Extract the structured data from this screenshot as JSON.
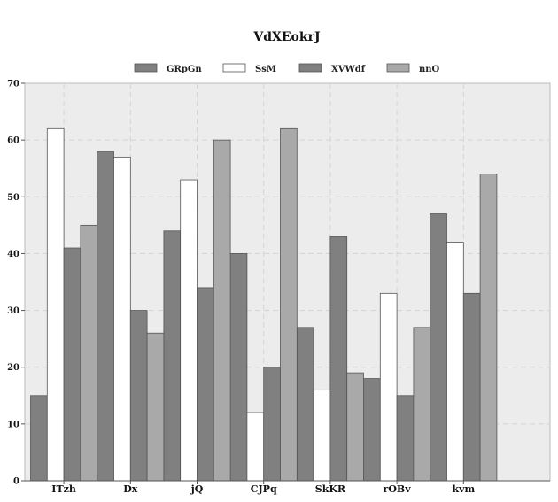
{
  "chart_data": {
    "type": "bar",
    "title": "VdXEokrJ",
    "xlabel": "",
    "ylabel": "",
    "categories": [
      "ITzh",
      "Dx",
      "jQ",
      "CJPq",
      "SkKR",
      "rOBv",
      "kvm"
    ],
    "series": [
      {
        "name": "GRpGn",
        "values": [
          15,
          58,
          44,
          40,
          27,
          18,
          47
        ],
        "color": "#808080"
      },
      {
        "name": "SsM",
        "values": [
          62,
          57,
          53,
          12,
          16,
          33,
          42
        ],
        "color": "#ffffff"
      },
      {
        "name": "XVWdf",
        "values": [
          41,
          30,
          34,
          20,
          43,
          15,
          33
        ],
        "color": "#808080"
      },
      {
        "name": "nnO",
        "values": [
          45,
          26,
          60,
          62,
          19,
          27,
          54
        ],
        "color": "#a9a9a9"
      }
    ],
    "ylim": [
      0,
      70
    ],
    "yticks": [
      0,
      10,
      20,
      30,
      40,
      50,
      60,
      70
    ],
    "grid": true,
    "legend_position": "top-center",
    "plot_background": "#ececec"
  }
}
